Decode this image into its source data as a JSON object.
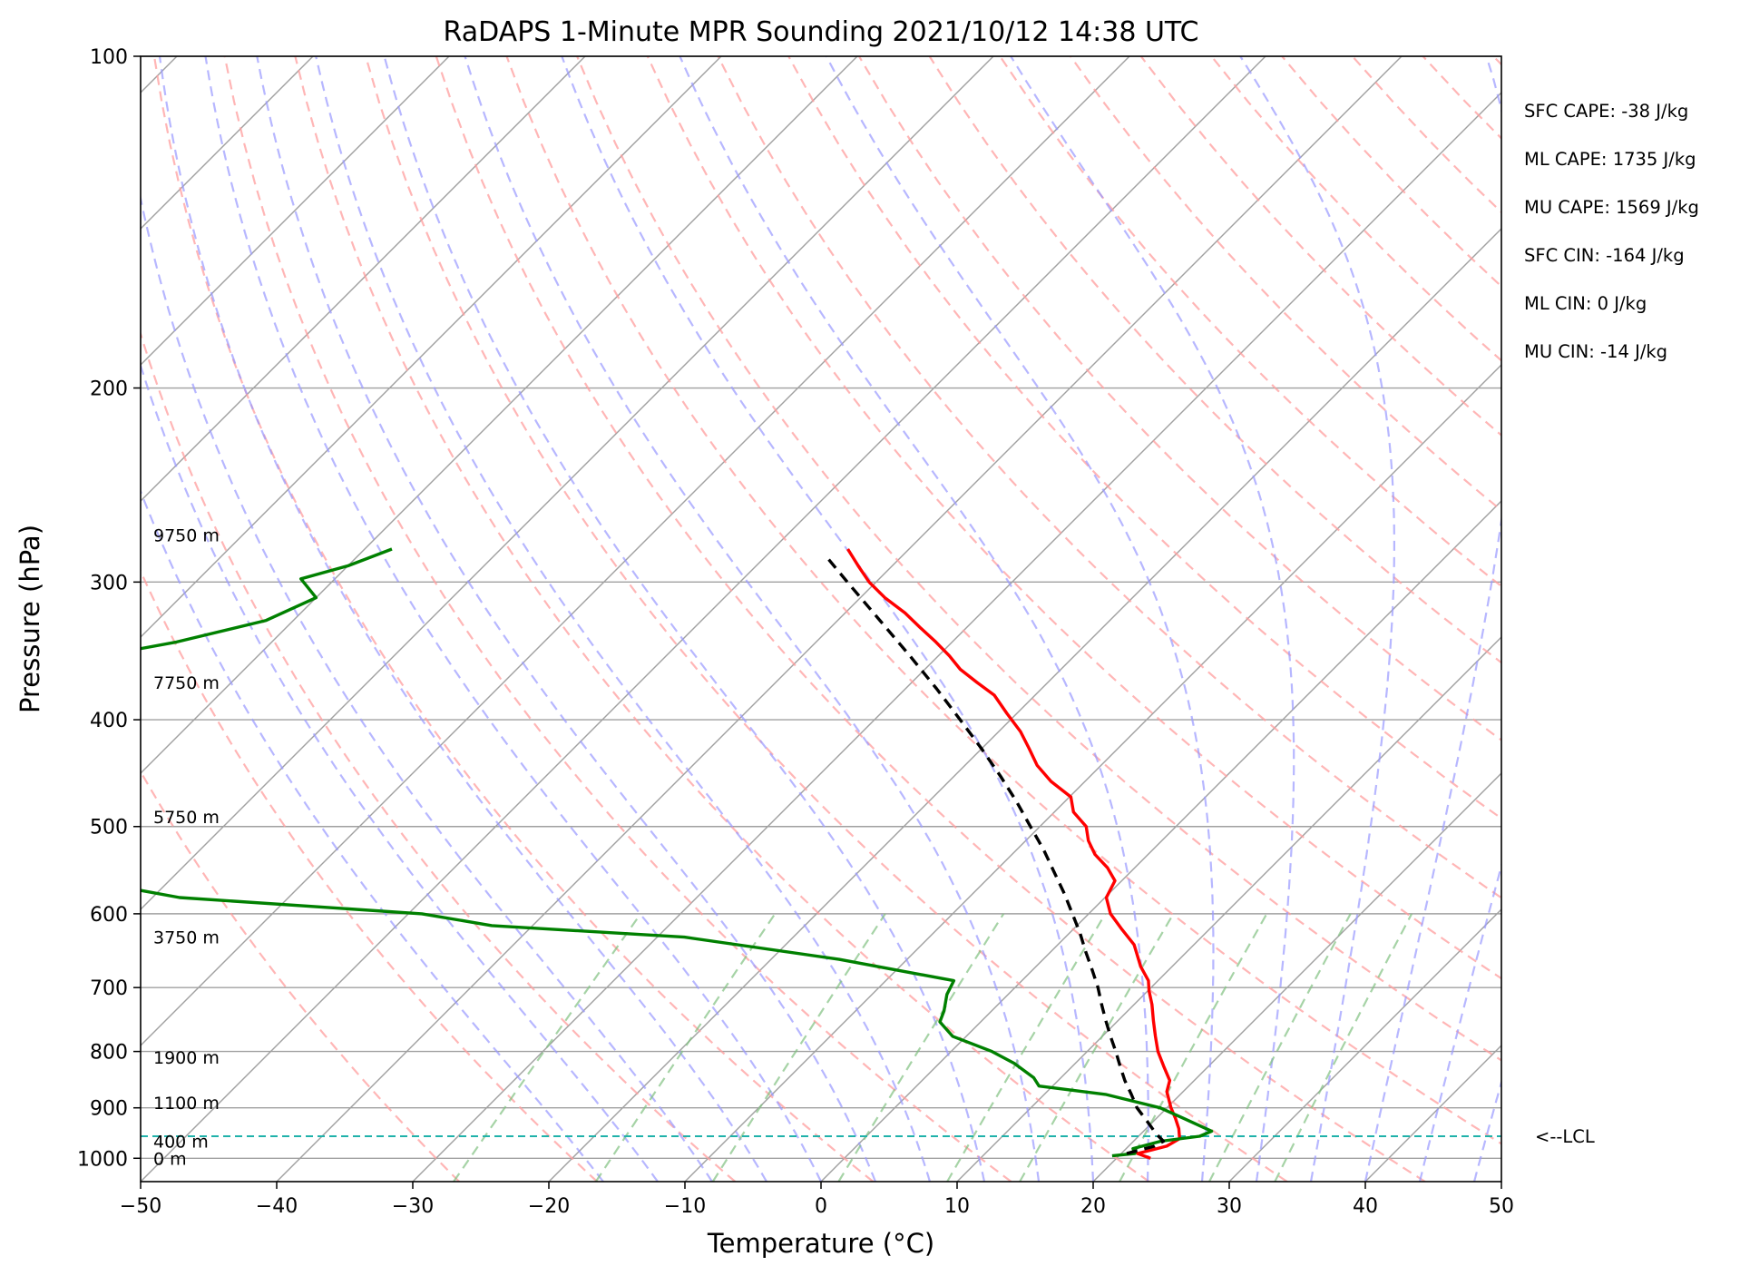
{
  "chart_data": {
    "type": "line",
    "subtype": "skew-T log-P sounding",
    "title": "RaDAPS 1-Minute MPR Sounding 2021/10/12 14:38 UTC",
    "xlabel": "Temperature (°C)",
    "ylabel": "Pressure (hPa)",
    "xlim": [
      -50,
      50
    ],
    "ylim": [
      1050,
      100
    ],
    "y_scale": "log",
    "grid": true,
    "x_ticks": [
      -50,
      -40,
      -30,
      -20,
      -10,
      0,
      10,
      20,
      30,
      40,
      50
    ],
    "x_tick_labels": [
      "−50",
      "−40",
      "−30",
      "−20",
      "−10",
      "0",
      "10",
      "20",
      "30",
      "40",
      "50"
    ],
    "y_ticks": [
      100,
      200,
      300,
      400,
      500,
      600,
      700,
      800,
      900,
      1000
    ],
    "y_tick_labels": [
      "100",
      "200",
      "300",
      "400",
      "500",
      "600",
      "700",
      "800",
      "900",
      "1000"
    ],
    "series": [
      {
        "role": "temperature",
        "color": "#ff0000",
        "points": [
          [
            1000,
            22.5
          ],
          [
            990,
            21.2
          ],
          [
            975,
            22.8
          ],
          [
            960,
            23.2
          ],
          [
            940,
            22.4
          ],
          [
            920,
            21.4
          ],
          [
            900,
            20.3
          ],
          [
            870,
            18.8
          ],
          [
            850,
            18.2
          ],
          [
            825,
            16.7
          ],
          [
            800,
            15.2
          ],
          [
            775,
            13.9
          ],
          [
            750,
            12.6
          ],
          [
            725,
            11.3
          ],
          [
            705,
            10.1
          ],
          [
            690,
            9.3
          ],
          [
            670,
            7.7
          ],
          [
            640,
            5.6
          ],
          [
            620,
            3.6
          ],
          [
            600,
            1.6
          ],
          [
            580,
            0.1
          ],
          [
            560,
            -0.5
          ],
          [
            545,
            -2.0
          ],
          [
            530,
            -3.9
          ],
          [
            515,
            -5.4
          ],
          [
            500,
            -6.6
          ],
          [
            485,
            -8.6
          ],
          [
            470,
            -9.9
          ],
          [
            455,
            -12.5
          ],
          [
            440,
            -14.7
          ],
          [
            425,
            -16.5
          ],
          [
            410,
            -18.4
          ],
          [
            395,
            -20.7
          ],
          [
            380,
            -23.0
          ],
          [
            370,
            -25.2
          ],
          [
            360,
            -27.4
          ],
          [
            350,
            -29.2
          ],
          [
            340,
            -31.2
          ],
          [
            330,
            -33.4
          ],
          [
            320,
            -35.6
          ],
          [
            310,
            -38.2
          ],
          [
            300,
            -40.5
          ],
          [
            290,
            -42.5
          ],
          [
            280,
            -44.5
          ]
        ]
      },
      {
        "role": "dewpoint",
        "color": "#008000",
        "points": [
          [
            995,
            19.5
          ],
          [
            990,
            21.0
          ],
          [
            980,
            20.5
          ],
          [
            965,
            22.0
          ],
          [
            955,
            24.5
          ],
          [
            945,
            25.0
          ],
          [
            920,
            22.0
          ],
          [
            900,
            19.5
          ],
          [
            875,
            14.5
          ],
          [
            860,
            9.0
          ],
          [
            845,
            8.0
          ],
          [
            820,
            5.5
          ],
          [
            800,
            3.0
          ],
          [
            775,
            -1.0
          ],
          [
            752,
            -3.0
          ],
          [
            735,
            -3.5
          ],
          [
            710,
            -4.5
          ],
          [
            690,
            -5.0
          ],
          [
            660,
            -15.0
          ],
          [
            630,
            -28.0
          ],
          [
            615,
            -43.0
          ],
          [
            600,
            -49.0
          ],
          [
            580,
            -68.0
          ],
          [
            560,
            -76.0
          ],
          [
            545,
            -80.0
          ],
          [
            525,
            -83.0
          ],
          [
            508,
            -87.5
          ],
          [
            490,
            -90.5
          ],
          [
            478,
            -92.5
          ],
          [
            465,
            -94.0
          ],
          [
            445,
            -95.5
          ],
          [
            430,
            -96.0
          ],
          [
            410,
            -97.0
          ],
          [
            395,
            -96.0
          ],
          [
            380,
            -97.0
          ],
          [
            370,
            -96.5
          ],
          [
            360,
            -94.5
          ],
          [
            350,
            -91.5
          ],
          [
            340,
            -87.0
          ],
          [
            325,
            -82.0
          ],
          [
            310,
            -80.0
          ],
          [
            298,
            -82.5
          ],
          [
            290,
            -80.0
          ],
          [
            280,
            -78.0
          ]
        ]
      },
      {
        "role": "parcel",
        "color": "#000000",
        "style": "dashed",
        "points": [
          [
            990,
            20.4
          ],
          [
            975,
            21.9
          ],
          [
            965,
            22.2
          ],
          [
            950,
            21.1
          ],
          [
            925,
            19.5
          ],
          [
            900,
            17.8
          ],
          [
            875,
            16.4
          ],
          [
            850,
            14.9
          ],
          [
            825,
            13.5
          ],
          [
            800,
            12.1
          ],
          [
            775,
            10.6
          ],
          [
            750,
            9.1
          ],
          [
            725,
            7.6
          ],
          [
            700,
            6.1
          ],
          [
            675,
            4.4
          ],
          [
            650,
            2.6
          ],
          [
            625,
            0.8
          ],
          [
            600,
            -1.2
          ],
          [
            575,
            -3.3
          ],
          [
            550,
            -5.6
          ],
          [
            525,
            -8.0
          ],
          [
            500,
            -10.7
          ],
          [
            475,
            -13.5
          ],
          [
            450,
            -16.6
          ],
          [
            425,
            -20.0
          ],
          [
            400,
            -23.7
          ],
          [
            375,
            -27.7
          ],
          [
            350,
            -32.1
          ],
          [
            325,
            -36.9
          ],
          [
            300,
            -42.1
          ],
          [
            285,
            -45.4
          ]
        ]
      }
    ],
    "lcl_pressure": 955,
    "lcl_label": "<--LCL",
    "height_labels": [
      {
        "p": 1000,
        "text": "0 m"
      },
      {
        "p": 965,
        "text": "400 m"
      },
      {
        "p": 890,
        "text": "1100 m"
      },
      {
        "p": 810,
        "text": "1900 m"
      },
      {
        "p": 630,
        "text": "3750 m"
      },
      {
        "p": 490,
        "text": "5750 m"
      },
      {
        "p": 370,
        "text": "7750 m"
      },
      {
        "p": 272,
        "text": "9750 m"
      }
    ],
    "parameters": [
      "SFC CAPE: -38 J/kg",
      "ML CAPE: 1735 J/kg",
      "MU CAPE: 1569 J/kg",
      "SFC CIN: -164 J/kg",
      "ML CIN: 0 J/kg",
      "MU CIN: -14 J/kg"
    ],
    "colors": {
      "temperature": "#ff0000",
      "dewpoint": "#008000",
      "parcel": "#000000",
      "dry_adiabat": "#ff9e9e",
      "moist_adiabat": "#9999ff",
      "mixing_ratio": "#80c080",
      "isotherm": "#a0a0a0",
      "lcl": "#20b2aa"
    }
  }
}
